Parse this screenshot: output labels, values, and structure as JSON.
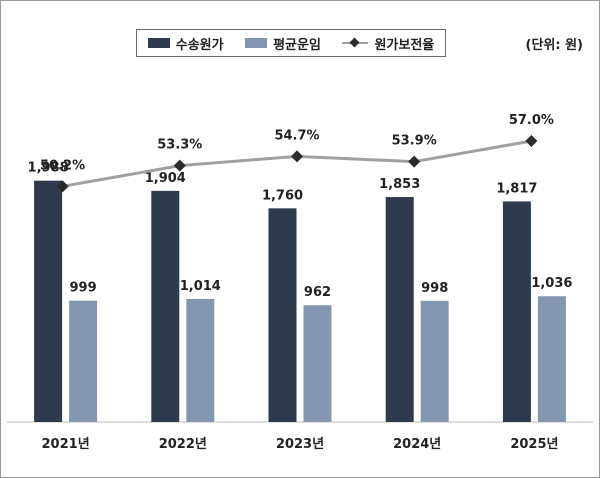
{
  "chart_data": {
    "type": "bar",
    "unit_label": "(단위: 원)",
    "categories": [
      "2021년",
      "2022년",
      "2023년",
      "2024년",
      "2025년"
    ],
    "series": [
      {
        "name": "수송원가",
        "values": [
          1988,
          1904,
          1760,
          1853,
          1817
        ],
        "labels": [
          "1,988",
          "1,904",
          "1,760",
          "1,853",
          "1,817"
        ],
        "color": "#2e3a4e"
      },
      {
        "name": "평균운임",
        "values": [
          999,
          1014,
          962,
          998,
          1036
        ],
        "labels": [
          "999",
          "1,014",
          "962",
          "998",
          "1,036"
        ],
        "color": "#8496b0"
      }
    ],
    "line_series": {
      "name": "원가보전율",
      "values": [
        50.2,
        53.3,
        54.7,
        53.9,
        57.0
      ],
      "labels": [
        "50.2%",
        "53.3%",
        "54.7%",
        "53.9%",
        "57.0%"
      ],
      "line_color": "#a0a0a0",
      "marker_color": "#2b2b2b"
    },
    "bar_axis_range": [
      0,
      2150
    ],
    "line_axis_range": [
      45,
      75
    ],
    "legend_position": "top-center",
    "grid": false
  }
}
